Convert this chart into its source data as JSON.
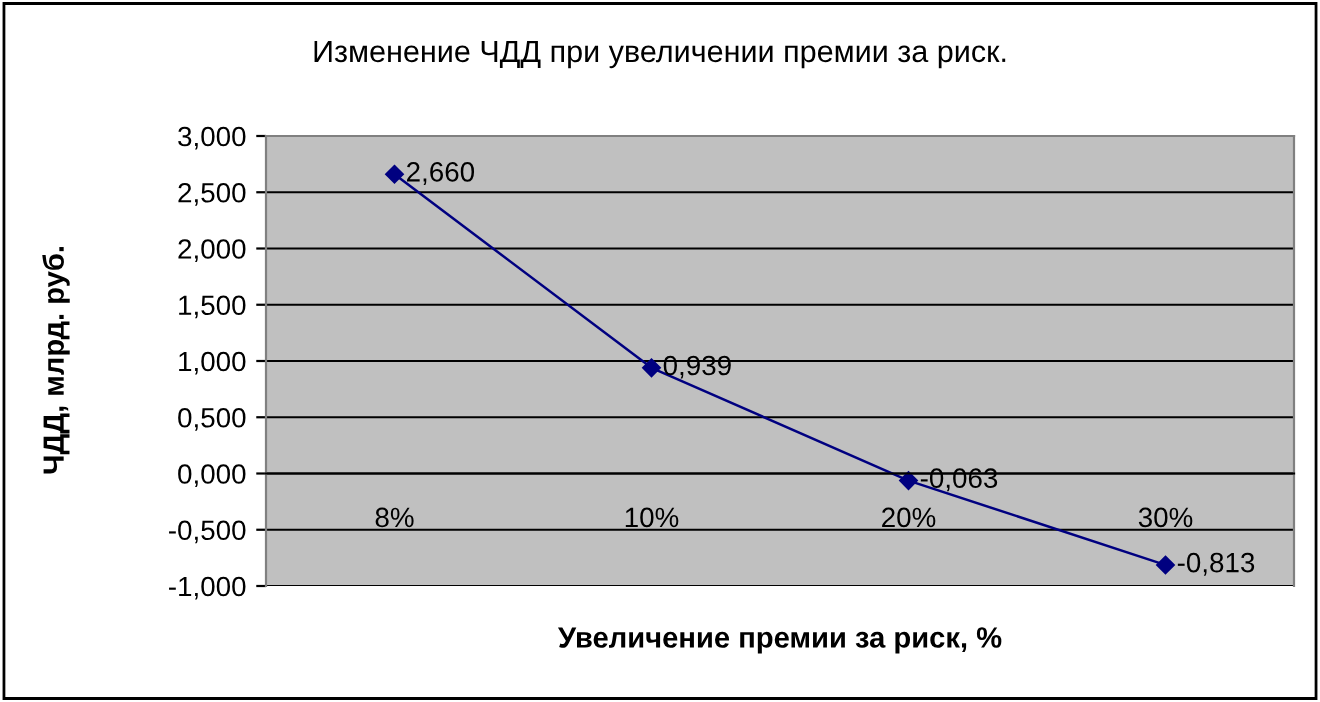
{
  "chart_data": {
    "type": "line",
    "title": "Изменение ЧДД при увеличении премии за риск.",
    "xlabel": "Увеличение премии за риск, %",
    "ylabel": "ЧДД, млрд. руб.",
    "categories": [
      "8%",
      "10%",
      "20%",
      "30%"
    ],
    "series": [
      {
        "color": "#000080",
        "values": [
          2.66,
          0.939,
          -0.063,
          -0.813
        ]
      }
    ],
    "value_labels": [
      "2,660",
      "0,939",
      "-0,063",
      "-0,813"
    ],
    "ylim": [
      -1,
      3
    ],
    "yticks": [
      {
        "value": -1,
        "label": "-1,000"
      },
      {
        "value": -0.5,
        "label": "-0,500"
      },
      {
        "value": 0,
        "label": "0,000"
      },
      {
        "value": 0.5,
        "label": "0,500"
      },
      {
        "value": 1,
        "label": "1,000"
      },
      {
        "value": 1.5,
        "label": "1,500"
      },
      {
        "value": 2,
        "label": "2,000"
      },
      {
        "value": 2.5,
        "label": "2,500"
      },
      {
        "value": 3,
        "label": "3,000"
      }
    ],
    "grid": "y",
    "marker": "diamond",
    "line_style": "solid"
  }
}
